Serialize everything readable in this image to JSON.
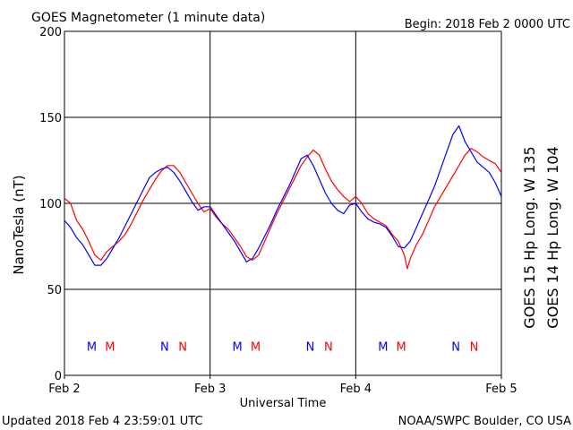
{
  "header": {
    "title": "GOES Magnetometer (1 minute data)",
    "begin": "Begin:  2018 Feb 2 0000 UTC"
  },
  "footer": {
    "updated": "Updated 2018 Feb  4 23:59:01 UTC",
    "source": "NOAA/SWPC Boulder, CO USA"
  },
  "colors": {
    "goes15": "#ff0000",
    "goes14": "#0000ff",
    "axis": "#000000",
    "background": "#ffffff"
  },
  "chart_data": {
    "type": "line",
    "title": "GOES Magnetometer (1 minute data)",
    "xlabel": "Universal Time",
    "ylabel": "NanoTesla (nT)",
    "x_unit": "hours since Feb 2 0000 UTC",
    "xlim": [
      0,
      72
    ],
    "ylim": [
      0,
      200
    ],
    "x_ticks": [
      {
        "x": 0,
        "label": "Feb 2"
      },
      {
        "x": 24,
        "label": "Feb 3"
      },
      {
        "x": 48,
        "label": "Feb 4"
      },
      {
        "x": 72,
        "label": "Feb 5"
      }
    ],
    "y_ticks": [
      0,
      50,
      100,
      150,
      200
    ],
    "grid": true,
    "legend_position": "right (vertical labels)",
    "series": [
      {
        "name": "GOES 15 Hp  Long. W 135",
        "color": "#ff0000",
        "points": [
          [
            0,
            103
          ],
          [
            1,
            100
          ],
          [
            2,
            90
          ],
          [
            3,
            85
          ],
          [
            4,
            78
          ],
          [
            5,
            70
          ],
          [
            6,
            67
          ],
          [
            7,
            72
          ],
          [
            8,
            75
          ],
          [
            9,
            78
          ],
          [
            10,
            82
          ],
          [
            11,
            88
          ],
          [
            12,
            95
          ],
          [
            13,
            102
          ],
          [
            14,
            108
          ],
          [
            15,
            114
          ],
          [
            16,
            119
          ],
          [
            17,
            122
          ],
          [
            18,
            122
          ],
          [
            19,
            118
          ],
          [
            20,
            112
          ],
          [
            21,
            106
          ],
          [
            22,
            100
          ],
          [
            23,
            95
          ],
          [
            24,
            97
          ],
          [
            25,
            92
          ],
          [
            26,
            88
          ],
          [
            27,
            85
          ],
          [
            28,
            80
          ],
          [
            29,
            75
          ],
          [
            30,
            69
          ],
          [
            31,
            67
          ],
          [
            32,
            70
          ],
          [
            33,
            78
          ],
          [
            34,
            86
          ],
          [
            35,
            94
          ],
          [
            36,
            101
          ],
          [
            37,
            108
          ],
          [
            38,
            115
          ],
          [
            39,
            122
          ],
          [
            40,
            127
          ],
          [
            41,
            131
          ],
          [
            42,
            128
          ],
          [
            43,
            120
          ],
          [
            44,
            113
          ],
          [
            45,
            108
          ],
          [
            46,
            104
          ],
          [
            47,
            101
          ],
          [
            48,
            104
          ],
          [
            49,
            100
          ],
          [
            50,
            94
          ],
          [
            51,
            91
          ],
          [
            52,
            89
          ],
          [
            53,
            87
          ],
          [
            54,
            82
          ],
          [
            55,
            78
          ],
          [
            56,
            70
          ],
          [
            56.5,
            62
          ],
          [
            57,
            68
          ],
          [
            58,
            76
          ],
          [
            59,
            82
          ],
          [
            60,
            90
          ],
          [
            61,
            98
          ],
          [
            62,
            104
          ],
          [
            63,
            110
          ],
          [
            64,
            116
          ],
          [
            65,
            122
          ],
          [
            66,
            128
          ],
          [
            67,
            132
          ],
          [
            68,
            130
          ],
          [
            69,
            127
          ],
          [
            70,
            125
          ],
          [
            71,
            123
          ],
          [
            72,
            118
          ]
        ]
      },
      {
        "name": "GOES 14 Hp  Long. W 104",
        "color": "#0000ff",
        "points": [
          [
            0,
            90
          ],
          [
            1,
            86
          ],
          [
            2,
            80
          ],
          [
            3,
            76
          ],
          [
            4,
            70
          ],
          [
            5,
            64
          ],
          [
            6,
            64
          ],
          [
            7,
            68
          ],
          [
            8,
            74
          ],
          [
            9,
            80
          ],
          [
            10,
            87
          ],
          [
            11,
            94
          ],
          [
            12,
            101
          ],
          [
            13,
            108
          ],
          [
            14,
            115
          ],
          [
            15,
            118
          ],
          [
            16,
            120
          ],
          [
            17,
            121
          ],
          [
            18,
            118
          ],
          [
            19,
            113
          ],
          [
            20,
            107
          ],
          [
            21,
            101
          ],
          [
            22,
            96
          ],
          [
            23,
            98
          ],
          [
            24,
            98
          ],
          [
            25,
            93
          ],
          [
            26,
            88
          ],
          [
            27,
            83
          ],
          [
            28,
            78
          ],
          [
            29,
            72
          ],
          [
            30,
            66
          ],
          [
            31,
            68
          ],
          [
            32,
            74
          ],
          [
            33,
            81
          ],
          [
            34,
            88
          ],
          [
            35,
            96
          ],
          [
            36,
            103
          ],
          [
            37,
            110
          ],
          [
            38,
            118
          ],
          [
            39,
            126
          ],
          [
            40,
            128
          ],
          [
            41,
            122
          ],
          [
            42,
            114
          ],
          [
            43,
            106
          ],
          [
            44,
            100
          ],
          [
            45,
            96
          ],
          [
            46,
            94
          ],
          [
            47,
            99
          ],
          [
            48,
            100
          ],
          [
            49,
            95
          ],
          [
            50,
            91
          ],
          [
            51,
            89
          ],
          [
            52,
            88
          ],
          [
            53,
            86
          ],
          [
            54,
            81
          ],
          [
            55,
            75
          ],
          [
            56,
            74
          ],
          [
            57,
            78
          ],
          [
            58,
            86
          ],
          [
            59,
            94
          ],
          [
            60,
            102
          ],
          [
            61,
            110
          ],
          [
            62,
            120
          ],
          [
            63,
            130
          ],
          [
            64,
            140
          ],
          [
            65,
            145
          ],
          [
            66,
            136
          ],
          [
            67,
            130
          ],
          [
            68,
            124
          ],
          [
            69,
            121
          ],
          [
            70,
            118
          ],
          [
            71,
            112
          ],
          [
            72,
            104
          ]
        ]
      }
    ],
    "markers": [
      {
        "label": "M",
        "x": 4.5,
        "series": "GOES 14 Hp  Long. W 104"
      },
      {
        "label": "M",
        "x": 7.5,
        "series": "GOES 15 Hp  Long. W 135"
      },
      {
        "label": "N",
        "x": 16.5,
        "series": "GOES 14 Hp  Long. W 104"
      },
      {
        "label": "N",
        "x": 19.5,
        "series": "GOES 15 Hp  Long. W 135"
      },
      {
        "label": "M",
        "x": 28.5,
        "series": "GOES 14 Hp  Long. W 104"
      },
      {
        "label": "M",
        "x": 31.5,
        "series": "GOES 15 Hp  Long. W 135"
      },
      {
        "label": "N",
        "x": 40.5,
        "series": "GOES 14 Hp  Long. W 104"
      },
      {
        "label": "N",
        "x": 43.5,
        "series": "GOES 15 Hp  Long. W 135"
      },
      {
        "label": "M",
        "x": 52.5,
        "series": "GOES 14 Hp  Long. W 104"
      },
      {
        "label": "M",
        "x": 55.5,
        "series": "GOES 15 Hp  Long. W 135"
      },
      {
        "label": "N",
        "x": 64.5,
        "series": "GOES 14 Hp  Long. W 104"
      },
      {
        "label": "N",
        "x": 67.5,
        "series": "GOES 15 Hp  Long. W 135"
      }
    ],
    "marker_y": 17
  }
}
